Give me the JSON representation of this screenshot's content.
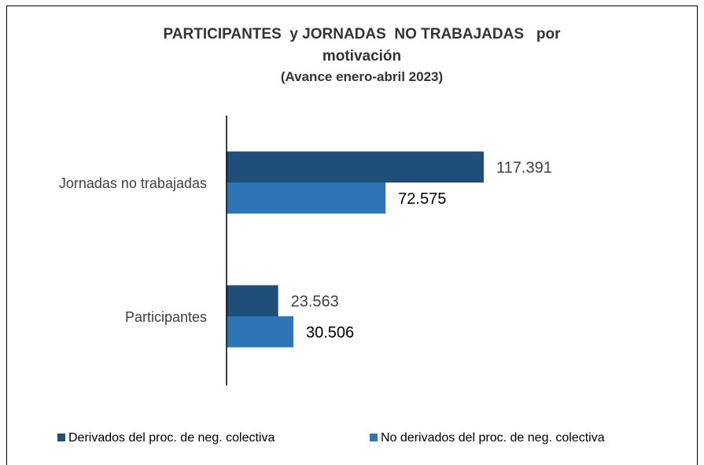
{
  "chart_data": {
    "type": "hbar",
    "title": "PARTICIPANTES  y JORNADAS  NO TRABAJADAS   por motivación",
    "subtitle": "(Avance enero-abril 2023)",
    "categories": [
      "Jornadas no trabajadas",
      "Participantes"
    ],
    "series": [
      {
        "name": "Derivados del proc. de neg. colectiva",
        "color": "#1f4e79",
        "values": [
          117391,
          23563
        ],
        "value_labels": [
          "117.391",
          "23.563"
        ]
      },
      {
        "name": "No derivados del proc. de neg. colectiva",
        "color": "#2e75b6",
        "values": [
          72575,
          30506
        ],
        "value_labels": [
          "72.575",
          "30.506"
        ]
      }
    ],
    "xlim": [
      0,
      140000
    ],
    "legend": "bottom"
  }
}
